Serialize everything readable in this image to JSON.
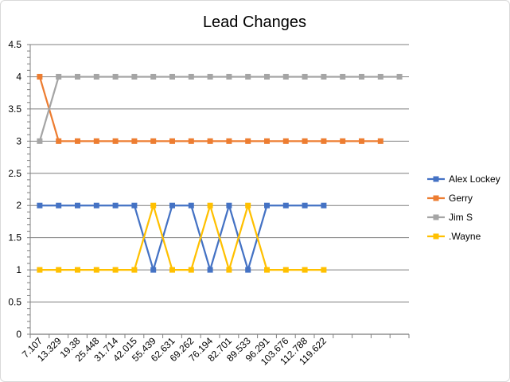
{
  "chart_data": {
    "type": "line",
    "title": "Lead Changes",
    "xlabel": "",
    "ylabel": "",
    "ylim": [
      0,
      4.5
    ],
    "ytick_step": 0.5,
    "grid": "horizontal",
    "legend_position": "right",
    "x_tick_labels": [
      "7.107",
      "13.329",
      "19.38",
      "25.448",
      "31.714",
      "42.015",
      "55.439",
      "62.631",
      "69.262",
      "76.194",
      "82.701",
      "89.533",
      "96.291",
      "103.676",
      "112.788",
      "119.622"
    ],
    "x_slots": 20,
    "series": [
      {
        "name": "Alex Lockey",
        "color": "#4472c4",
        "values": [
          2,
          2,
          2,
          2,
          2,
          2,
          1,
          2,
          2,
          1,
          2,
          1,
          2,
          2,
          2,
          2
        ]
      },
      {
        "name": "Gerry",
        "color": "#ed7d31",
        "values": [
          4,
          3,
          3,
          3,
          3,
          3,
          3,
          3,
          3,
          3,
          3,
          3,
          3,
          3,
          3,
          3,
          3,
          3,
          3
        ]
      },
      {
        "name": "Jim S",
        "color": "#a5a5a5",
        "values": [
          3,
          4,
          4,
          4,
          4,
          4,
          4,
          4,
          4,
          4,
          4,
          4,
          4,
          4,
          4,
          4,
          4,
          4,
          4,
          4
        ]
      },
      {
        "name": ".Wayne",
        "color": "#ffc000",
        "values": [
          1,
          1,
          1,
          1,
          1,
          1,
          2,
          1,
          1,
          2,
          1,
          2,
          1,
          1,
          1,
          1
        ]
      }
    ]
  }
}
